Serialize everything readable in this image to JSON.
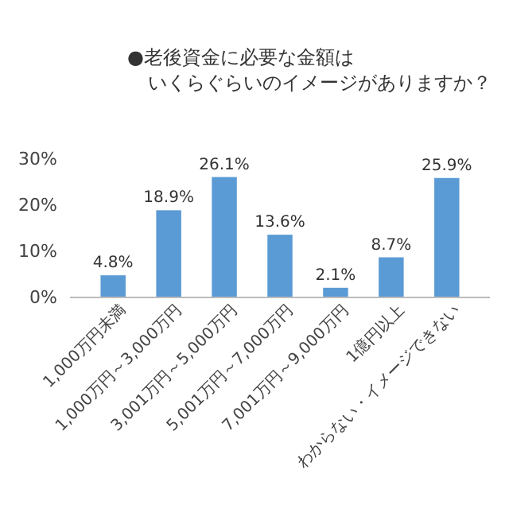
{
  "chart_data": {
    "type": "bar",
    "title": "●老後資金に必要な金額は",
    "subtitle": "いくらぐらいのイメージがありますか？",
    "categories": [
      "1,000万円未満",
      "1,000万円～3,000万円",
      "3,001万円～5,000万円",
      "5,001万円～7,000万円",
      "7,001万円～9,000万円",
      "1億円以上",
      "わからない・イメージできない"
    ],
    "values": [
      4.8,
      18.9,
      26.1,
      13.6,
      2.1,
      8.7,
      25.9
    ],
    "color": "#5b9bd5",
    "value_labels": [
      "4.8%",
      "18.9%",
      "26.1%",
      "13.6%",
      "2.1%",
      "8.7%",
      "25.9%"
    ],
    "ylim": [
      0,
      30
    ],
    "yticks": [
      {
        "value": 0,
        "label": "0%"
      },
      {
        "value": 10,
        "label": "10%"
      },
      {
        "value": 20,
        "label": "20%"
      },
      {
        "value": 30,
        "label": "30%"
      }
    ],
    "grid": false
  }
}
